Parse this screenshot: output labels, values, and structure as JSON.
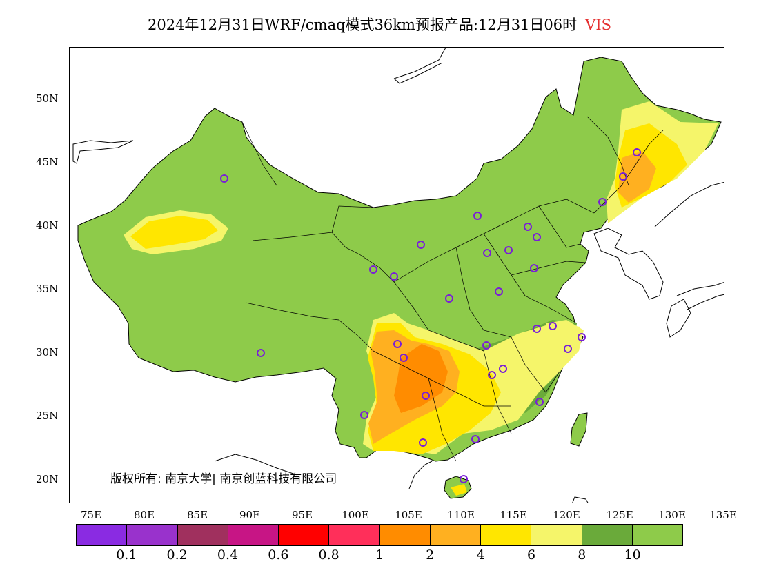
{
  "title": {
    "text": "2024年12月31日WRF/cmaq模式36km预报产品:12月31日06时",
    "variable": "VIS"
  },
  "map": {
    "lon_range": [
      73,
      135
    ],
    "lat_range": [
      18,
      54
    ],
    "lat_ticks": [
      "50N",
      "45N",
      "40N",
      "35N",
      "30N",
      "25N",
      "20N"
    ],
    "lon_ticks": [
      "75E",
      "80E",
      "85E",
      "90E",
      "95E",
      "100E",
      "105E",
      "110E",
      "115E",
      "120E",
      "125E",
      "130E",
      "135E"
    ],
    "copyright": "版权所有: 南京大学| 南京创蓝科技有限公司",
    "station_marker_color": "#7a1fd6"
  },
  "legend": {
    "colors": [
      "#8a2be2",
      "#9932cc",
      "#a0305e",
      "#c71585",
      "#ff0000",
      "#ff2f5a",
      "#ff8c00",
      "#ffb020",
      "#ffe600",
      "#f5f56a",
      "#6aaa3a",
      "#8ecb4a"
    ],
    "labels": [
      "0.1",
      "0.2",
      "0.4",
      "0.6",
      "0.8",
      "1",
      "2",
      "4",
      "6",
      "8",
      "10"
    ]
  },
  "colors": {
    "high_vis": "#8ecb4a",
    "vis_8_10": "#6aaa3a",
    "vis_6_8": "#f5f56a",
    "vis_4_6": "#ffe600",
    "vis_2_4": "#ffb020",
    "vis_1_2": "#ff8c00"
  }
}
